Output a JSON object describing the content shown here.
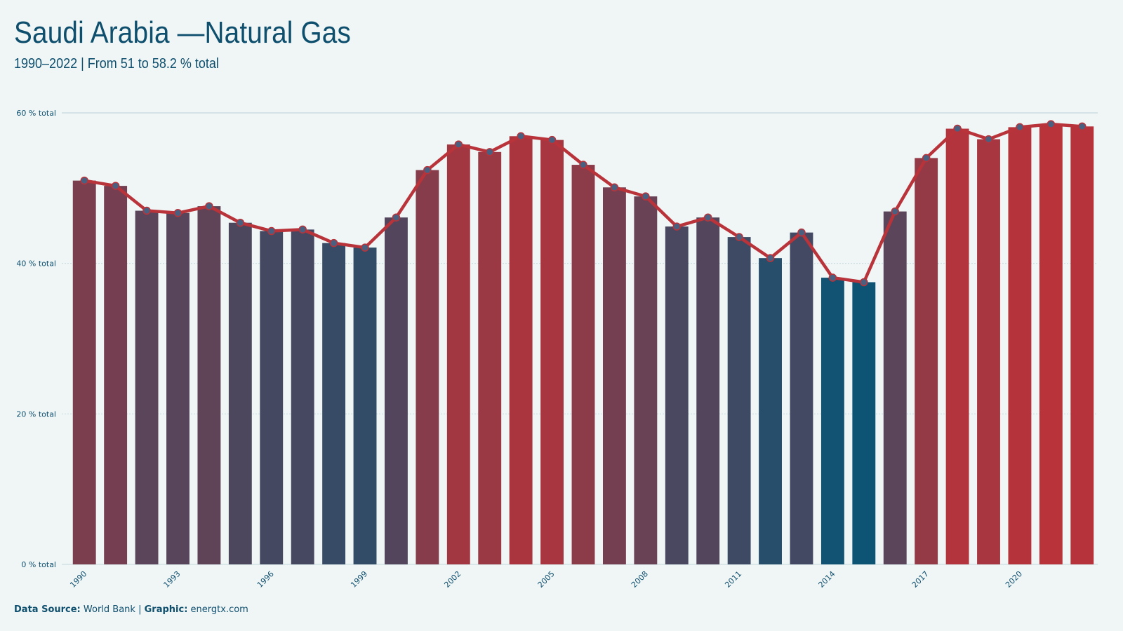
{
  "title": "Saudi Arabia —Natural Gas",
  "subtitle": "1990–2022 | From 51 to 58.2 % total",
  "footer": {
    "source_label": "Data Source:",
    "source_value": "World Bank",
    "separator": "|",
    "graphic_label": "Graphic:",
    "graphic_value": "energtx.com"
  },
  "colors": {
    "low": "#0d5374",
    "high": "#b8333a",
    "line": "#b8333a",
    "marker": "#4a6080",
    "grid": "#c5d8dc",
    "background": "#f0f6f6"
  },
  "chart_data": {
    "type": "bar",
    "x": [
      1990,
      1991,
      1992,
      1993,
      1994,
      1995,
      1996,
      1997,
      1998,
      1999,
      2000,
      2001,
      2002,
      2003,
      2004,
      2005,
      2006,
      2007,
      2008,
      2009,
      2010,
      2011,
      2012,
      2013,
      2014,
      2015,
      2016,
      2017,
      2018,
      2019,
      2020,
      2021,
      2022
    ],
    "values": [
      51.0,
      50.3,
      47.0,
      46.7,
      47.6,
      45.4,
      44.3,
      44.5,
      42.7,
      42.1,
      46.1,
      52.4,
      55.8,
      54.8,
      56.9,
      56.4,
      53.1,
      50.1,
      48.9,
      44.9,
      46.1,
      43.5,
      40.7,
      44.1,
      38.1,
      37.5,
      46.9,
      54.0,
      57.9,
      56.5,
      58.1,
      58.5,
      58.2
    ],
    "x_tick_labels": [
      "1990",
      "1993",
      "1996",
      "1999",
      "2002",
      "2005",
      "2008",
      "2011",
      "2014",
      "2017",
      "2020"
    ],
    "y_ticks": [
      0,
      20,
      40,
      60
    ],
    "y_tick_suffix": " % total",
    "ylim": [
      0,
      60
    ],
    "grid": true,
    "overlay_line": true
  }
}
